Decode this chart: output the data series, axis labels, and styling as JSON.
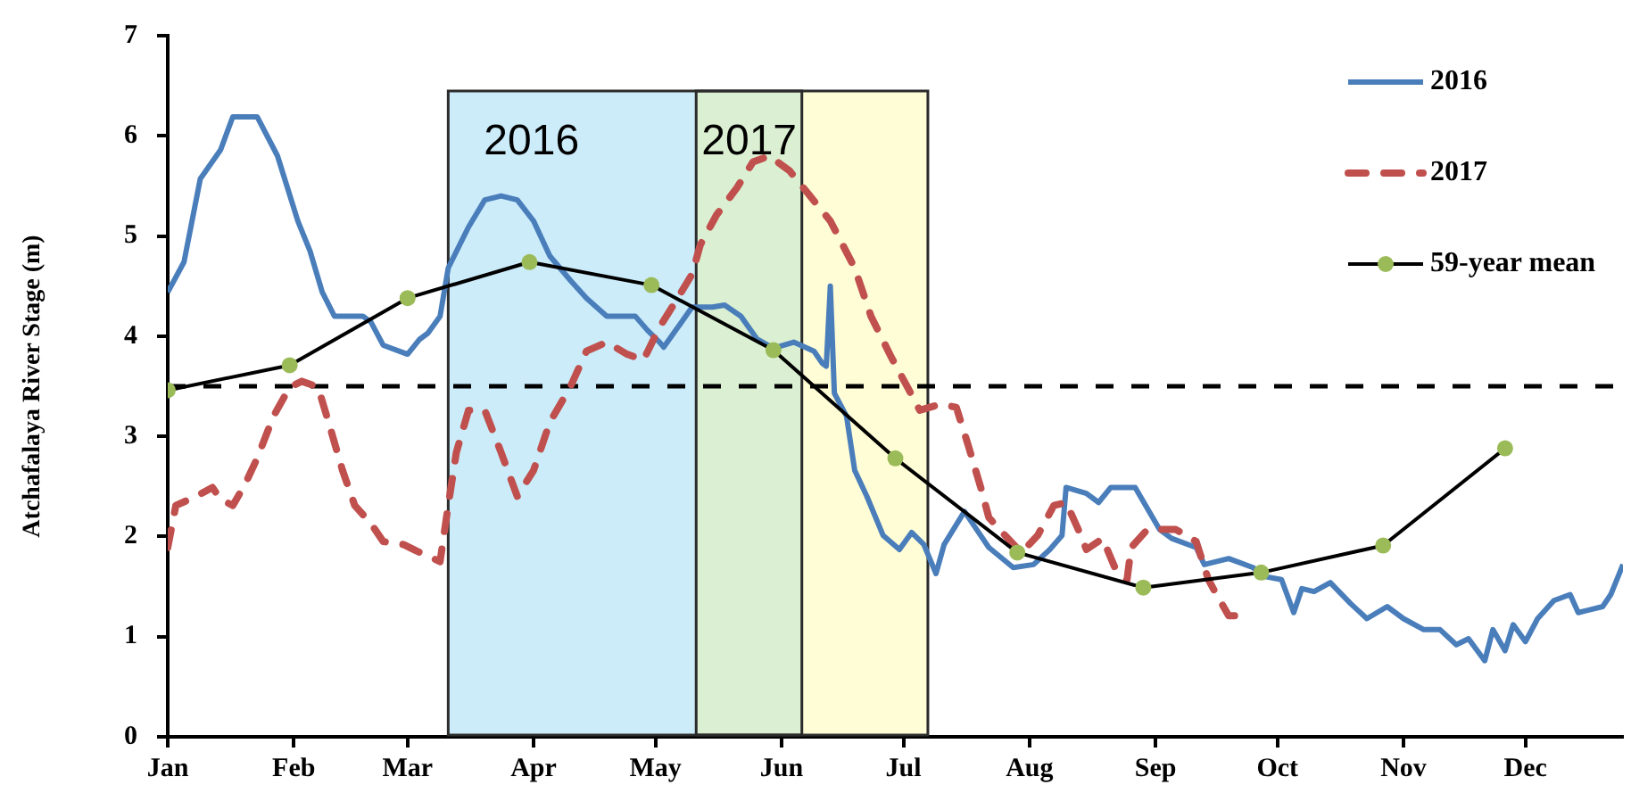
{
  "chart_data": {
    "type": "line",
    "ylabel": "Atchafalaya River Stage (m)",
    "xlim": [
      "--01-01",
      "--12-25"
    ],
    "xticks": [
      {
        "value": "--01-01",
        "label": "Jan"
      },
      {
        "value": "--02-01",
        "label": "Feb"
      },
      {
        "value": "--03-01",
        "label": "Mar"
      },
      {
        "value": "--04-01",
        "label": "Apr"
      },
      {
        "value": "--05-01",
        "label": "May"
      },
      {
        "value": "--06-01",
        "label": "Jun"
      },
      {
        "value": "--07-01",
        "label": "Jul"
      },
      {
        "value": "--08-01",
        "label": "Aug"
      },
      {
        "value": "--09-01",
        "label": "Sep"
      },
      {
        "value": "--10-01",
        "label": "Oct"
      },
      {
        "value": "--11-01",
        "label": "Nov"
      },
      {
        "value": "--12-01",
        "label": "Dec"
      }
    ],
    "ylim": [
      0,
      7
    ],
    "yticks": [
      0,
      1,
      2,
      3,
      4,
      5,
      6,
      7
    ],
    "grid": false,
    "legend": "top right",
    "marker": "none",
    "line_style": "solid",
    "series": [
      {
        "name": "2016",
        "color": "#4a7ebb",
        "x": [
          "--01-01",
          "--01-05",
          "--01-09",
          "--01-14",
          "--01-17",
          "--01-23",
          "--01-28",
          "--02-02",
          "--02-05",
          "--02-08",
          "--02-11",
          "--02-18",
          "--02-20",
          "--02-23",
          "--03-01",
          "--03-04",
          "--03-06",
          "--03-09",
          "--03-11",
          "--03-16",
          "--03-20",
          "--03-24",
          "--03-28",
          "--04-01",
          "--04-05",
          "--04-10",
          "--04-14",
          "--04-19",
          "--04-26",
          "--04-29",
          "--05-02",
          "--05-03",
          "--05-06",
          "--05-10",
          "--05-15",
          "--05-18",
          "--05-22",
          "--05-26",
          "--05-30",
          "--06-04",
          "--06-09",
          "--06-11",
          "--06-12",
          "--06-13",
          "--06-14",
          "--06-17",
          "--06-19",
          "--06-22",
          "--06-26",
          "--06-30",
          "--07-03",
          "--07-06",
          "--07-09",
          "--07-11",
          "--07-16",
          "--07-19",
          "--07-22",
          "--07-28",
          "--08-02",
          "--08-06",
          "--08-09",
          "--08-10",
          "--08-15",
          "--08-18",
          "--08-21",
          "--08-27",
          "--08-30",
          "--09-02",
          "--09-05",
          "--09-11",
          "--09-13",
          "--09-19",
          "--09-25",
          "--09-28",
          "--10-02",
          "--10-05",
          "--10-07",
          "--10-10",
          "--10-14",
          "--10-19",
          "--10-23",
          "--10-28",
          "--11-01",
          "--11-06",
          "--11-10",
          "--11-14",
          "--11-17",
          "--11-21",
          "--11-23",
          "--11-26",
          "--11-28",
          "--12-01",
          "--12-04",
          "--12-08",
          "--12-12",
          "--12-14",
          "--12-20",
          "--12-22",
          "--12-25"
        ],
        "values": [
          4.44,
          4.74,
          5.57,
          5.86,
          6.19,
          6.19,
          5.8,
          5.15,
          4.85,
          4.44,
          4.2,
          4.2,
          4.14,
          3.91,
          3.82,
          3.97,
          4.03,
          4.2,
          4.68,
          5.09,
          5.36,
          5.4,
          5.36,
          5.15,
          4.8,
          4.56,
          4.38,
          4.2,
          4.2,
          4.06,
          3.94,
          3.89,
          4.06,
          4.29,
          4.29,
          4.31,
          4.2,
          3.97,
          3.88,
          3.94,
          3.85,
          3.73,
          3.7,
          4.5,
          3.43,
          3.2,
          2.66,
          2.4,
          2.01,
          1.87,
          2.04,
          1.92,
          1.63,
          1.92,
          2.25,
          2.07,
          1.89,
          1.69,
          1.72,
          1.87,
          2.01,
          2.49,
          2.43,
          2.34,
          2.49,
          2.49,
          2.28,
          2.07,
          1.98,
          1.89,
          1.72,
          1.78,
          1.69,
          1.6,
          1.57,
          1.24,
          1.48,
          1.45,
          1.54,
          1.33,
          1.18,
          1.3,
          1.18,
          1.07,
          1.07,
          0.92,
          0.98,
          0.76,
          1.07,
          0.86,
          1.12,
          0.95,
          1.18,
          1.36,
          1.42,
          1.24,
          1.3,
          1.42,
          1.72
        ]
      },
      {
        "name": "2017",
        "color": "#c0504d",
        "line_style": "dashed",
        "x": [
          "--01-01",
          "--01-03",
          "--01-08",
          "--01-12",
          "--01-14",
          "--01-17",
          "--01-20",
          "--01-23",
          "--01-27",
          "--01-31",
          "--02-03",
          "--02-07",
          "--02-10",
          "--02-13",
          "--02-16",
          "--02-20",
          "--02-23",
          "--02-28",
          "--03-03",
          "--03-09",
          "--03-11",
          "--03-13",
          "--03-16",
          "--03-20",
          "--03-24",
          "--03-28",
          "--04-01",
          "--04-05",
          "--04-10",
          "--04-14",
          "--04-19",
          "--04-24",
          "--04-28",
          "--05-02",
          "--05-06",
          "--05-10",
          "--05-12",
          "--05-16",
          "--05-21",
          "--05-25",
          "--05-29",
          "--06-03",
          "--06-07",
          "--06-13",
          "--06-19",
          "--06-23",
          "--06-28",
          "--07-02",
          "--07-05",
          "--07-10",
          "--07-14",
          "--07-17",
          "--07-20",
          "--07-22",
          "--07-26",
          "--07-30",
          "--08-03",
          "--08-07",
          "--08-10",
          "--08-13",
          "--08-15",
          "--08-19",
          "--08-22",
          "--08-25",
          "--08-26",
          "--08-30",
          "--09-02",
          "--09-06",
          "--09-11",
          "--09-14",
          "--09-16",
          "--09-19",
          "--09-22"
        ],
        "values": [
          1.89,
          2.31,
          2.4,
          2.49,
          2.37,
          2.31,
          2.52,
          2.78,
          3.2,
          3.49,
          3.55,
          3.49,
          3.08,
          2.66,
          2.31,
          2.13,
          1.95,
          1.92,
          1.86,
          1.75,
          2.31,
          2.84,
          3.26,
          3.26,
          2.84,
          2.4,
          2.66,
          3.14,
          3.49,
          3.85,
          3.94,
          3.82,
          3.76,
          4.09,
          4.35,
          4.62,
          4.91,
          5.21,
          5.48,
          5.74,
          5.8,
          5.65,
          5.45,
          5.15,
          4.68,
          4.2,
          3.79,
          3.49,
          3.26,
          3.32,
          3.29,
          2.9,
          2.49,
          2.19,
          2.01,
          1.84,
          2.01,
          2.31,
          2.34,
          2.07,
          1.87,
          1.98,
          1.69,
          1.57,
          1.89,
          2.07,
          2.07,
          2.07,
          1.95,
          1.57,
          1.42,
          1.21,
          1.21
        ]
      },
      {
        "name": "59-year mean",
        "color": "#000000",
        "marker": "circle",
        "colors": [
          "#9bbb59",
          "#9bbb59",
          "#9bbb59",
          "#9bbb59",
          "#9bbb59",
          "#9bbb59",
          "#9bbb59",
          "#9bbb59",
          "#9bbb59",
          "#9bbb59",
          "#9bbb59",
          "#9bbb59"
        ],
        "x": [
          "--01-01",
          "--01-31",
          "--03-01",
          "--03-31",
          "--04-30",
          "--05-30",
          "--06-29",
          "--07-29",
          "--08-29",
          "--09-27",
          "--10-27",
          "--11-26"
        ],
        "values": [
          3.46,
          3.71,
          4.38,
          4.74,
          4.51,
          3.86,
          2.78,
          1.84,
          1.49,
          1.64,
          1.91,
          2.88
        ]
      }
    ],
    "ref_lines": [
      {
        "axis": "y",
        "value": 3.5,
        "color": "#000000",
        "line_style": "dashed"
      }
    ],
    "bands": [
      {
        "axis": "x",
        "from": "--03-11",
        "to": "--06-06",
        "label": "2016",
        "color": "#ccecfa"
      },
      {
        "axis": "x",
        "from": "--05-11",
        "to": "--07-07",
        "label": "2017",
        "color": "#fffdd6"
      }
    ]
  }
}
